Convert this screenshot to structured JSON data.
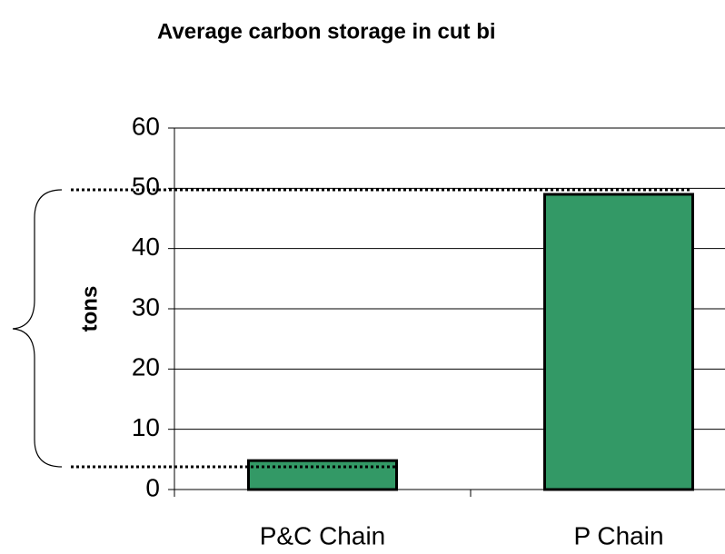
{
  "chart_data": {
    "type": "bar",
    "title": "Average carbon storage in cut bi",
    "y_label": "tons",
    "categories": [
      "P&C Chain",
      "P Chain"
    ],
    "values": [
      4.8,
      49
    ],
    "color": "#339966",
    "ylim": [
      0,
      60
    ],
    "yticks": [
      0,
      10,
      20,
      30,
      40,
      50,
      60
    ],
    "grid": true
  }
}
